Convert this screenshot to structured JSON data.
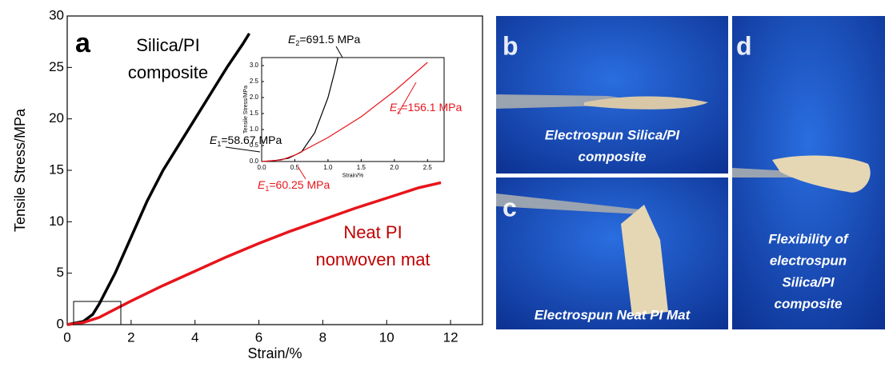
{
  "chart_data": [
    {
      "type": "line",
      "panel_label": "a",
      "xlabel": "Strain/%",
      "ylabel": "Tensile Stress/MPa",
      "xlim": [
        0,
        13
      ],
      "xticks": [
        0,
        2,
        4,
        6,
        8,
        10,
        12
      ],
      "ylim": [
        0,
        30
      ],
      "yticks": [
        0,
        5,
        10,
        15,
        20,
        25,
        30
      ],
      "series": [
        {
          "color": "#000000",
          "x": [
            0,
            0.5,
            0.8,
            1,
            1.5,
            2,
            2.5,
            3,
            3.5,
            4,
            4.5,
            5,
            5.5,
            5.7
          ],
          "y": [
            0,
            0.3,
            1,
            2,
            5,
            8.5,
            12,
            15,
            17.5,
            20,
            22.5,
            25,
            27.3,
            28.3
          ]
        },
        {
          "color": "#e8141b",
          "x": [
            0,
            0.5,
            1,
            2,
            3,
            4,
            5,
            6,
            7,
            8,
            9,
            10,
            11,
            11.7
          ],
          "y": [
            0,
            0.2,
            0.7,
            2.3,
            3.8,
            5.2,
            6.6,
            7.9,
            9.1,
            10.2,
            11.3,
            12.3,
            13.3,
            13.8
          ]
        }
      ],
      "annotations": [
        {
          "lines": [
            "Silica/PI",
            "composite"
          ],
          "color": "#000000"
        },
        {
          "lines": [
            "Neat PI",
            "nonwoven mat"
          ],
          "color": "#c00000"
        }
      ]
    },
    {
      "type": "line",
      "xlabel": "Strain/%",
      "ylabel": "Tensile Stress/MPa",
      "xlim": [
        0,
        2.75
      ],
      "xticks": [
        {
          "value": 0,
          "label": "0.0"
        },
        0.5,
        {
          "value": 1,
          "label": "1.0"
        },
        1.5,
        {
          "value": 2,
          "label": "2.0"
        },
        2.5
      ],
      "ylim": [
        0,
        3.25
      ],
      "yticks": [
        {
          "value": 0,
          "label": "0.0"
        },
        0.5,
        {
          "value": 1,
          "label": "1.0"
        },
        1.5,
        {
          "value": 2,
          "label": "2.0"
        },
        2.5,
        {
          "value": 3,
          "label": "3.0"
        }
      ],
      "series": [
        {
          "color": "#000000",
          "x": [
            0,
            0.2,
            0.4,
            0.6,
            0.8,
            1,
            1.1,
            1.15
          ],
          "y": [
            0,
            0.03,
            0.1,
            0.3,
            0.9,
            2,
            2.8,
            3.25
          ]
        },
        {
          "color": "#e8141b",
          "x": [
            0,
            0.3,
            0.5,
            1,
            1.5,
            2,
            2.5
          ],
          "y": [
            0,
            0.05,
            0.2,
            0.75,
            1.4,
            2.2,
            3.1
          ]
        }
      ],
      "annotations": [
        {
          "symbol": "E",
          "sub": "2",
          "text": "=691.5 MPa",
          "color": "#000000"
        },
        {
          "symbol": "E",
          "sub": "2",
          "text": "=156.1 MPa",
          "color": "#e8141b"
        },
        {
          "symbol": "E",
          "sub": "1",
          "text": "=58.67 MPa",
          "color": "#000000"
        },
        {
          "symbol": "E",
          "sub": "1",
          "text": "=60.25 MPa",
          "color": "#e8141b"
        }
      ]
    }
  ],
  "panels": [
    {
      "label": "b",
      "caption": [
        "Electrospun Silica/PI",
        "composite"
      ]
    },
    {
      "label": "c",
      "caption": [
        "Electrospun Neat PI Mat"
      ]
    },
    {
      "label": "d",
      "caption": [
        "Flexibility of",
        "electrospun",
        "Silica/PI",
        "composite"
      ]
    }
  ]
}
